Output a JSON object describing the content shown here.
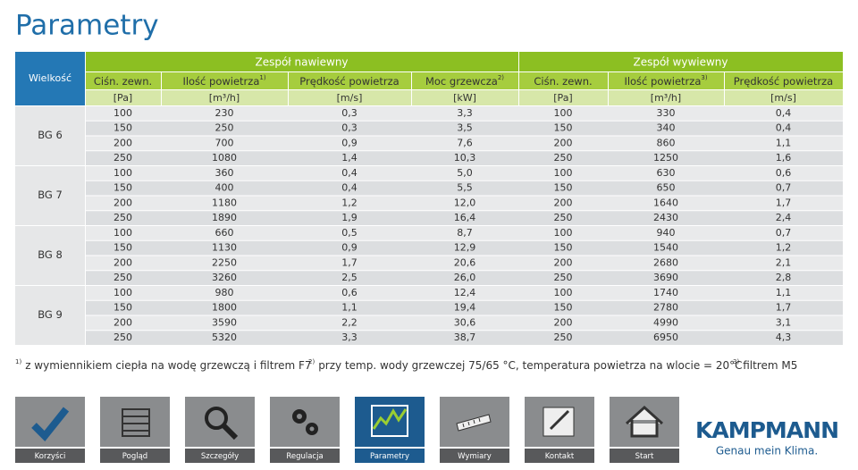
{
  "title": "Parametry",
  "table": {
    "group_header": "Wielkość",
    "sections": [
      "Zespół nawiewny",
      "Zespół wywiewny"
    ],
    "columns": [
      {
        "label": "Ciśn. zewn.",
        "unit": "[Pa]"
      },
      {
        "label": "Ilość powietrza",
        "sup": "1)",
        "unit": "[m³/h]"
      },
      {
        "label": "Prędkość powietrza",
        "unit": "[m/s]"
      },
      {
        "label": "Moc grzewcza",
        "sup": "2)",
        "unit": "[kW]"
      },
      {
        "label": "Ciśn. zewn.",
        "unit": "[Pa]"
      },
      {
        "label": "Ilość powietrza",
        "sup": "3)",
        "unit": "[m³/h]"
      },
      {
        "label": "Prędkość powietrza",
        "unit": "[m/s]"
      }
    ],
    "groups": [
      {
        "label": "BG 6",
        "rows": [
          [
            "100",
            "230",
            "0,3",
            "3,3",
            "100",
            "330",
            "0,4"
          ],
          [
            "150",
            "250",
            "0,3",
            "3,5",
            "150",
            "340",
            "0,4"
          ],
          [
            "200",
            "700",
            "0,9",
            "7,6",
            "200",
            "860",
            "1,1"
          ],
          [
            "250",
            "1080",
            "1,4",
            "10,3",
            "250",
            "1250",
            "1,6"
          ]
        ]
      },
      {
        "label": "BG 7",
        "rows": [
          [
            "100",
            "360",
            "0,4",
            "5,0",
            "100",
            "630",
            "0,6"
          ],
          [
            "150",
            "400",
            "0,4",
            "5,5",
            "150",
            "650",
            "0,7"
          ],
          [
            "200",
            "1180",
            "1,2",
            "12,0",
            "200",
            "1640",
            "1,7"
          ],
          [
            "250",
            "1890",
            "1,9",
            "16,4",
            "250",
            "2430",
            "2,4"
          ]
        ]
      },
      {
        "label": "BG 8",
        "rows": [
          [
            "100",
            "660",
            "0,5",
            "8,7",
            "100",
            "940",
            "0,7"
          ],
          [
            "150",
            "1130",
            "0,9",
            "12,9",
            "150",
            "1540",
            "1,2"
          ],
          [
            "200",
            "2250",
            "1,7",
            "20,6",
            "200",
            "2680",
            "2,1"
          ],
          [
            "250",
            "3260",
            "2,5",
            "26,0",
            "250",
            "3690",
            "2,8"
          ]
        ]
      },
      {
        "label": "BG 9",
        "rows": [
          [
            "100",
            "980",
            "0,6",
            "12,4",
            "100",
            "1740",
            "1,1"
          ],
          [
            "150",
            "1800",
            "1,1",
            "19,4",
            "150",
            "2780",
            "1,7"
          ],
          [
            "200",
            "3590",
            "2,2",
            "30,6",
            "200",
            "4990",
            "3,1"
          ],
          [
            "250",
            "5320",
            "3,3",
            "38,7",
            "250",
            "6950",
            "4,3"
          ]
        ]
      }
    ]
  },
  "footnotes": [
    {
      "mark": "1)",
      "text": "z wymiennikiem ciepła na wodę grzewczą i filtrem F7"
    },
    {
      "mark": "2)",
      "text": "przy temp. wody grzewczej 75/65 °C, temperatura powietrza na wlocie = 20°C"
    },
    {
      "mark": "3)",
      "text": "filtrem M5"
    }
  ],
  "nav": {
    "items": [
      "Korzyści",
      "Pogląd",
      "Szczegóły",
      "Regulacja",
      "Parametry",
      "Wymiary",
      "Kontakt",
      "Start"
    ],
    "active": 4
  },
  "logo": {
    "brand": "KAMPMANN",
    "tagline": "Genau mein Klima."
  }
}
